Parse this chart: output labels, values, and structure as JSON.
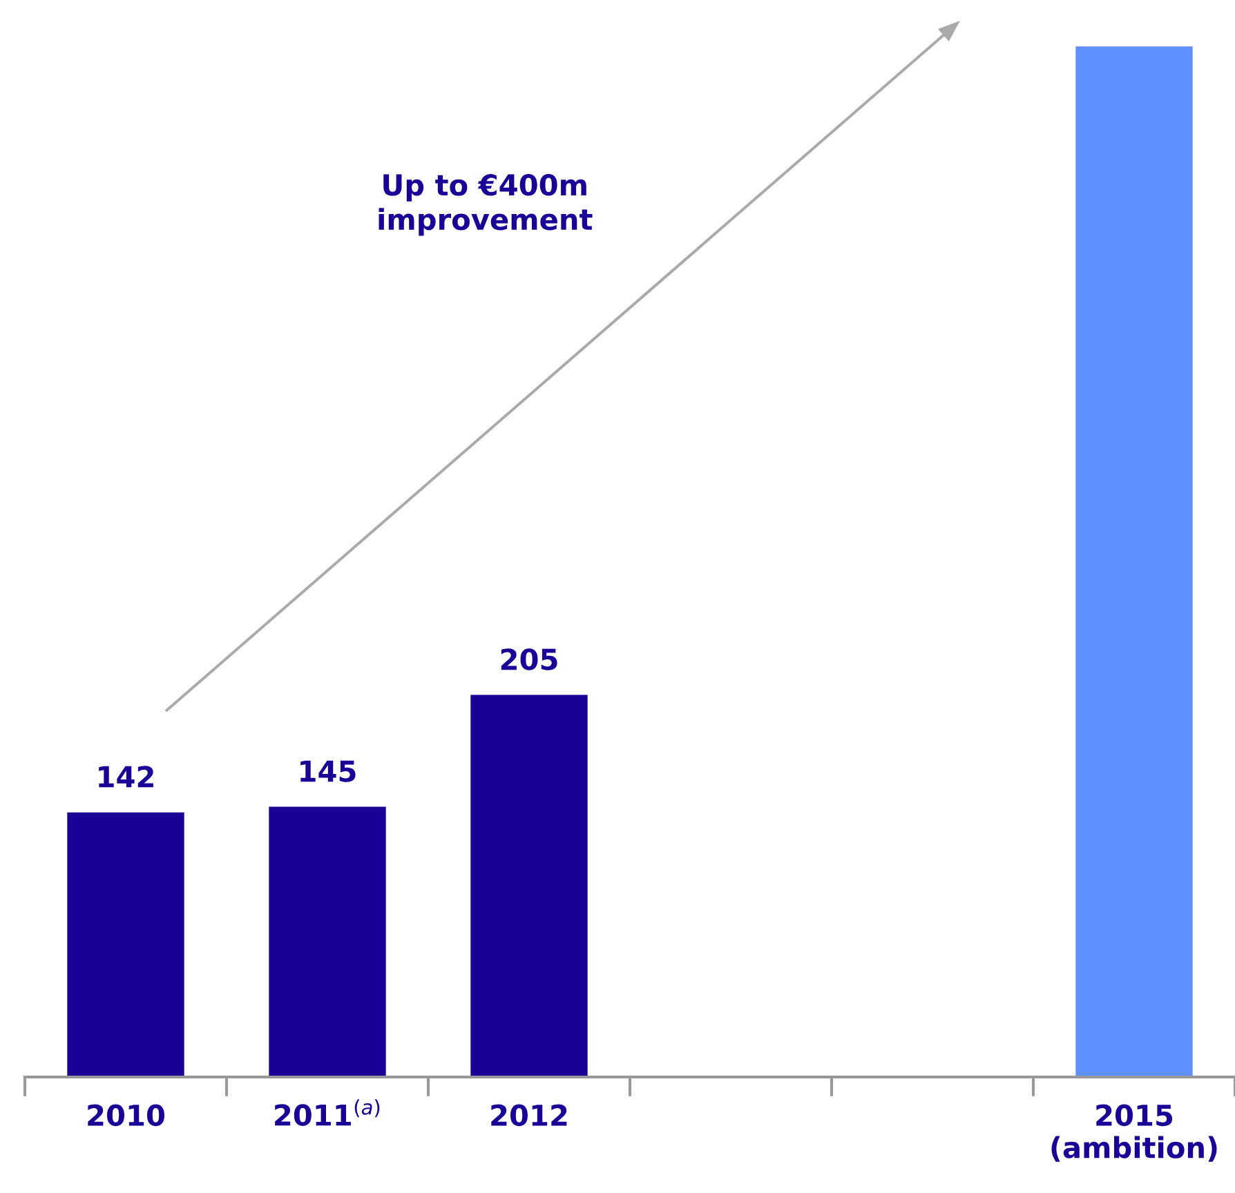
{
  "chart_data": {
    "type": "bar",
    "categories": [
      "2010",
      "2011$^{(a)}$",
      "2012",
      null,
      null,
      "2015\n(ambition)"
    ],
    "values": [
      142,
      145,
      205,
      null,
      null,
      553
    ],
    "colors": [
      "#1a0096",
      "#1a0096",
      "#1a0096",
      null,
      null,
      "#6090ff"
    ],
    "value_labels": [
      "142",
      "145",
      "205",
      null,
      null,
      null
    ],
    "annotations": [
      "Up to €400m\nimprovement"
    ],
    "grid": false,
    "legend": false
  }
}
